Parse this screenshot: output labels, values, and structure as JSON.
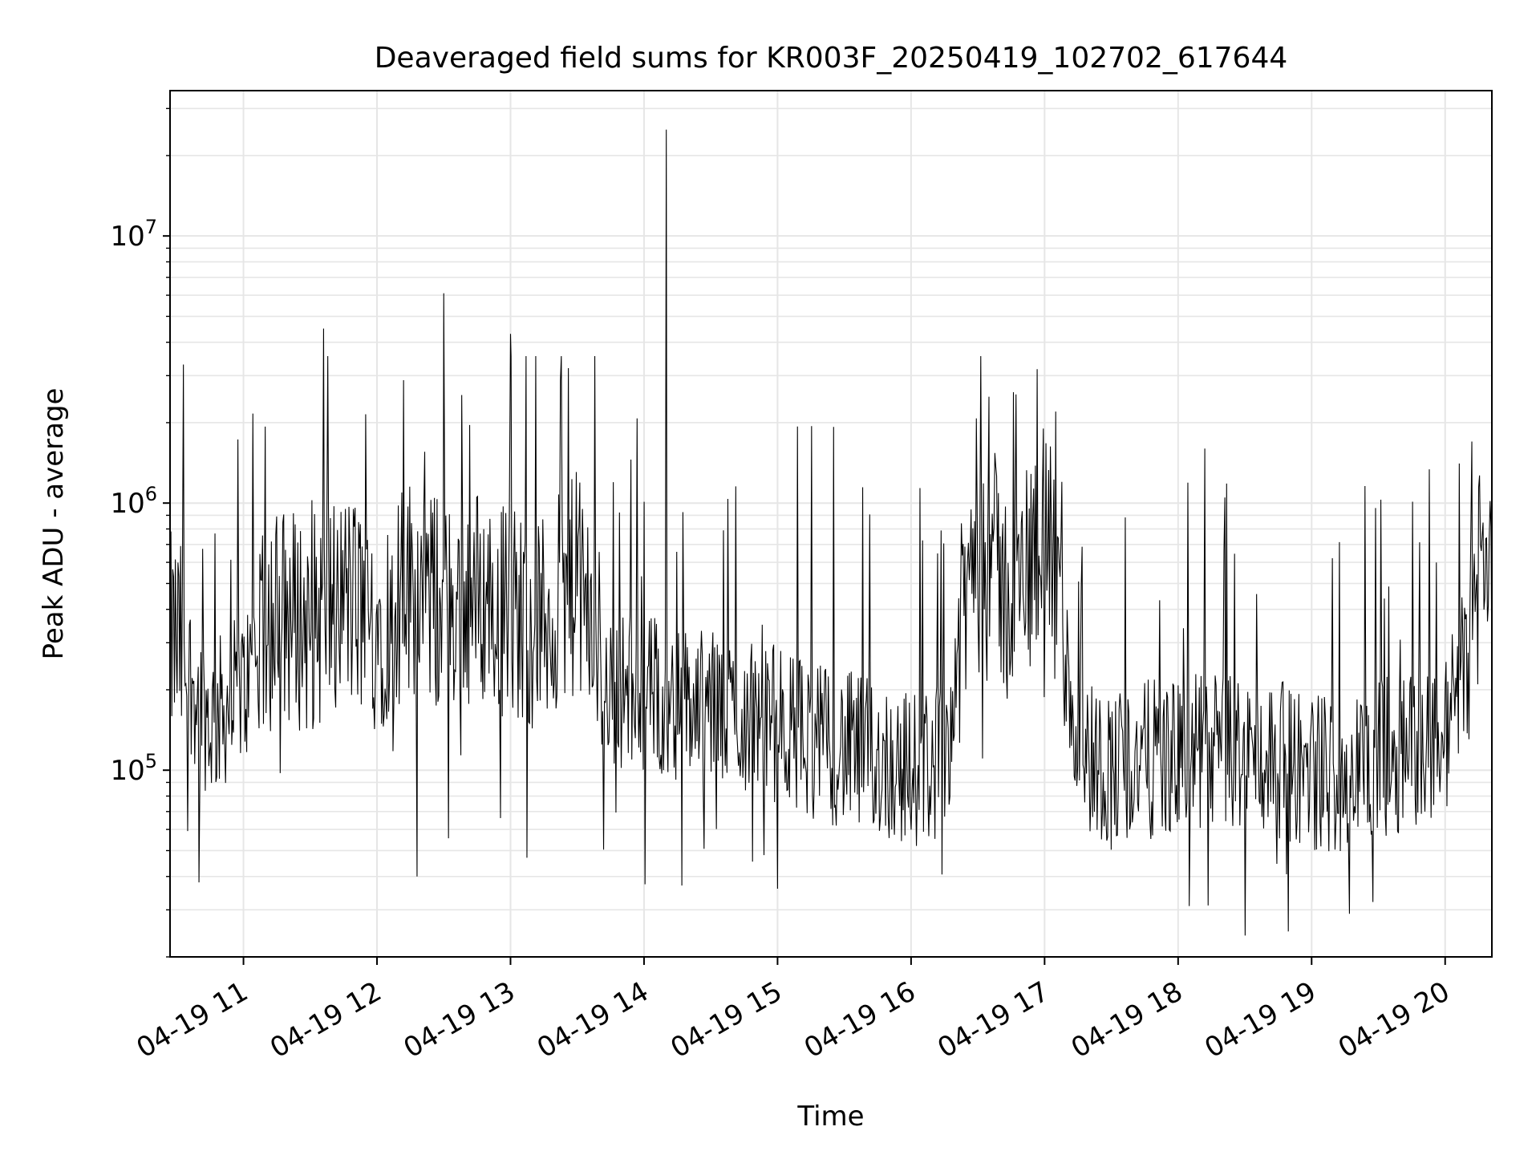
{
  "chart_data": {
    "type": "line",
    "title": "Deaveraged field sums for KR003F_20250419_102702_617644",
    "xlabel": "Time",
    "ylabel": "Peak ADU - average",
    "x_scale": "time",
    "x_range": [
      "2025-04-19 10:27",
      "2025-04-19 20:21"
    ],
    "y_scale": "log",
    "y_range": [
      20000,
      35000000
    ],
    "x_tick_labels": [
      "04-19 11",
      "04-19 12",
      "04-19 13",
      "04-19 14",
      "04-19 15",
      "04-19 16",
      "04-19 17",
      "04-19 18",
      "04-19 19",
      "04-19 20"
    ],
    "y_tick_labels": [
      {
        "base": "10",
        "exp": "5",
        "value": 100000
      },
      {
        "base": "10",
        "exp": "6",
        "value": 1000000
      },
      {
        "base": "10",
        "exp": "7",
        "value": 10000000
      }
    ],
    "grid": true,
    "line_color": "#000000",
    "grid_color": "#e6e6e6",
    "series": [
      {
        "x": [
          "2025-04-19 10:30",
          "2025-04-19 10:45",
          "2025-04-19 11:00",
          "2025-04-19 11:15",
          "2025-04-19 11:30",
          "2025-04-19 11:45",
          "2025-04-19 12:00",
          "2025-04-19 12:15",
          "2025-04-19 12:30",
          "2025-04-19 12:45",
          "2025-04-19 13:00",
          "2025-04-19 13:15",
          "2025-04-19 13:30",
          "2025-04-19 13:45",
          "2025-04-19 14:00",
          "2025-04-19 14:15",
          "2025-04-19 14:30",
          "2025-04-19 14:45",
          "2025-04-19 15:00",
          "2025-04-19 15:15",
          "2025-04-19 15:30",
          "2025-04-19 15:45",
          "2025-04-19 16:00",
          "2025-04-19 16:15",
          "2025-04-19 16:30",
          "2025-04-19 16:45",
          "2025-04-19 17:00",
          "2025-04-19 17:15",
          "2025-04-19 17:30",
          "2025-04-19 17:45",
          "2025-04-19 18:00",
          "2025-04-19 18:15",
          "2025-04-19 18:30",
          "2025-04-19 18:45",
          "2025-04-19 19:00",
          "2025-04-19 19:15",
          "2025-04-19 19:30",
          "2025-04-19 19:45",
          "2025-04-19 20:00",
          "2025-04-19 20:15"
        ],
        "y": [
          300000,
          150000,
          200000,
          400000,
          350000,
          450000,
          350000,
          500000,
          400000,
          450000,
          400000,
          350000,
          500000,
          200000,
          200000,
          180000,
          170000,
          160000,
          150000,
          130000,
          120000,
          110000,
          100000,
          110000,
          900000,
          400000,
          900000,
          120000,
          100000,
          110000,
          110000,
          120000,
          115000,
          110000,
          100000,
          95000,
          110000,
          120000,
          130000,
          500000
        ]
      }
    ],
    "peaks": [
      {
        "x": "2025-04-19 10:33",
        "y": 3300000
      },
      {
        "x": "2025-04-19 11:36",
        "y": 4500000
      },
      {
        "x": "2025-04-19 12:30",
        "y": 6100000
      },
      {
        "x": "2025-04-19 13:00",
        "y": 4300000
      },
      {
        "x": "2025-04-19 13:26",
        "y": 3200000
      },
      {
        "x": "2025-04-19 14:10",
        "y": 25000000
      },
      {
        "x": "2025-04-19 16:35",
        "y": 2500000
      },
      {
        "x": "2025-04-19 16:46",
        "y": 2600000
      },
      {
        "x": "2025-04-19 17:05",
        "y": 2200000
      },
      {
        "x": "2025-04-19 18:12",
        "y": 1600000
      },
      {
        "x": "2025-04-19 20:12",
        "y": 1700000
      }
    ],
    "dips": [
      {
        "x": "2025-04-19 10:40",
        "y": 38000
      },
      {
        "x": "2025-04-19 12:18",
        "y": 40000
      },
      {
        "x": "2025-04-19 14:17",
        "y": 37000
      },
      {
        "x": "2025-04-19 15:00",
        "y": 36000
      },
      {
        "x": "2025-04-19 18:05",
        "y": 31000
      },
      {
        "x": "2025-04-19 19:17",
        "y": 29000
      }
    ]
  }
}
